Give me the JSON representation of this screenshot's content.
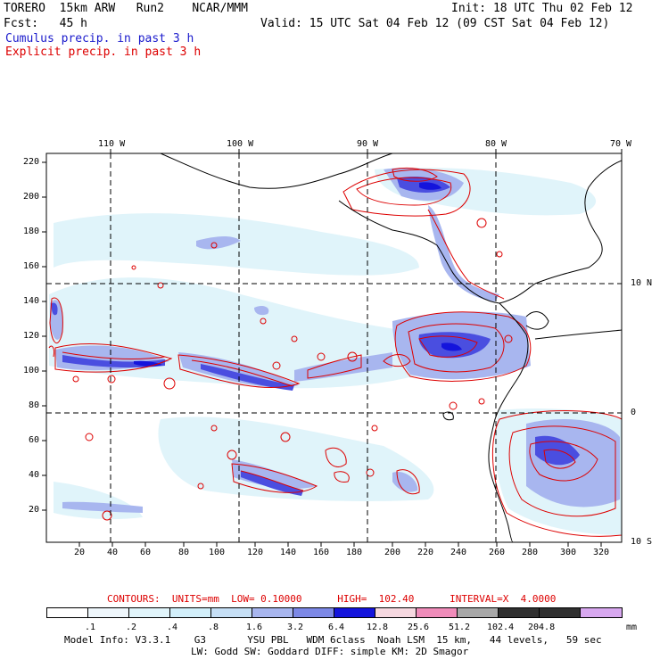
{
  "header": {
    "line1_left": "TORERO  15km ARW   Run2    NCAR/MMM",
    "line1_right": "Init: 18 UTC Thu 02 Feb 12",
    "line2_left": "Fcst:   45 h",
    "line2_right": "Valid: 15 UTC Sat 04 Feb 12 (09 CST Sat 04 Feb 12)",
    "cumulus_label": "Cumulus precip. in past 3 h",
    "explicit_label": "Explicit precip. in past 3 h"
  },
  "map": {
    "top_lon_labels": [
      "110 W",
      "100 W",
      "90 W",
      "80 W",
      "70 W"
    ],
    "right_lat_labels": [
      "10 N",
      "0",
      "10 S"
    ],
    "y_ticks": [
      "220",
      "200",
      "180",
      "160",
      "140",
      "120",
      "100",
      "80",
      "60",
      "40",
      "20"
    ],
    "x_ticks": [
      "20",
      "40",
      "60",
      "80",
      "100",
      "120",
      "140",
      "160",
      "180",
      "200",
      "220",
      "240",
      "260",
      "280",
      "300",
      "320"
    ]
  },
  "contours_text": {
    "line": "CONTOURS:  UNITS=mm  LOW= 0.10000      HIGH=  102.40      INTERVAL=X  4.0000"
  },
  "colorbar": {
    "labels": [
      ".1",
      ".2",
      ".4",
      ".8",
      "1.6",
      "3.2",
      "6.4",
      "12.8",
      "25.6",
      "51.2",
      "102.4",
      "204.8"
    ],
    "unit": "mm",
    "colors": [
      "#ffffff",
      "#eef6fb",
      "#e0f4fa",
      "#d2effa",
      "#c6dff5",
      "#a8b6ef",
      "#7c88e6",
      "#4a4ee0",
      "#1414dc",
      "#f6d8e0",
      "#f08cba",
      "#a8a8a8",
      "#303030",
      "#d8a8f0"
    ]
  },
  "footer": {
    "line1": "Model Info: V3.3.1    G3       YSU PBL   WDM 6class  Noah LSM  15 km,   44 levels,   59 sec",
    "line2": "LW: Godd SW: Goddard DIFF: simple KM: 2D Smagor"
  }
}
